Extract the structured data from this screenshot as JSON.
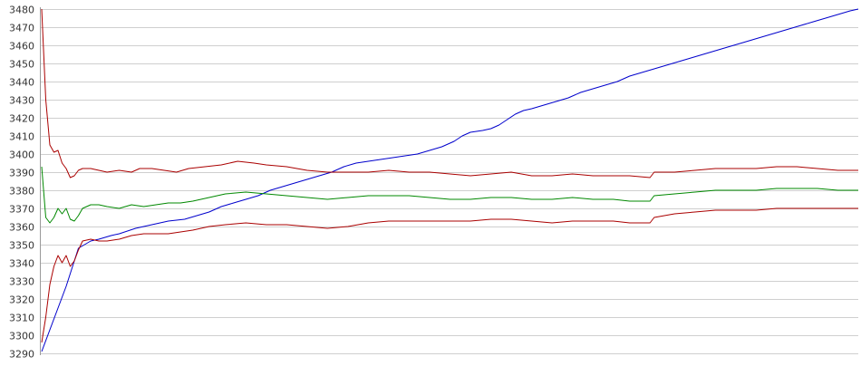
{
  "chart_data": {
    "type": "line",
    "title": "",
    "xlabel": "",
    "ylabel": "",
    "ylim": [
      3290,
      3480
    ],
    "xlim": [
      0,
      200
    ],
    "y_ticks": [
      "3290",
      "3300",
      "3310",
      "3320",
      "3330",
      "3340",
      "3350",
      "3360",
      "3370",
      "3380",
      "3390",
      "3400",
      "3410",
      "3420",
      "3430",
      "3440",
      "3450",
      "3460",
      "3470",
      "3480"
    ],
    "grid": true,
    "legend": "none",
    "series": [
      {
        "color": "#0000cc",
        "points": [
          [
            0,
            3291
          ],
          [
            4,
            3315
          ],
          [
            6,
            3327
          ],
          [
            8,
            3341
          ],
          [
            9,
            3348
          ],
          [
            12,
            3352
          ],
          [
            14,
            3353
          ],
          [
            17,
            3355
          ],
          [
            19,
            3356
          ],
          [
            23,
            3359
          ],
          [
            27,
            3361
          ],
          [
            31,
            3363
          ],
          [
            35,
            3364
          ],
          [
            38,
            3366
          ],
          [
            41,
            3368
          ],
          [
            44,
            3371
          ],
          [
            47,
            3373
          ],
          [
            50,
            3375
          ],
          [
            53,
            3377
          ],
          [
            56,
            3380
          ],
          [
            59,
            3382
          ],
          [
            62,
            3384
          ],
          [
            65,
            3386
          ],
          [
            68,
            3388
          ],
          [
            71,
            3390
          ],
          [
            74,
            3393
          ],
          [
            77,
            3395
          ],
          [
            80,
            3396
          ],
          [
            83,
            3397
          ],
          [
            86,
            3398
          ],
          [
            89,
            3399
          ],
          [
            92,
            3400
          ],
          [
            95,
            3402
          ],
          [
            98,
            3404
          ],
          [
            101,
            3407
          ],
          [
            103,
            3410
          ],
          [
            105,
            3412
          ],
          [
            108,
            3413
          ],
          [
            110,
            3414
          ],
          [
            112,
            3416
          ],
          [
            114,
            3419
          ],
          [
            116,
            3422
          ],
          [
            118,
            3424
          ],
          [
            120,
            3425
          ],
          [
            123,
            3427
          ],
          [
            126,
            3429
          ],
          [
            129,
            3431
          ],
          [
            132,
            3434
          ],
          [
            135,
            3436
          ],
          [
            138,
            3438
          ],
          [
            141,
            3440
          ],
          [
            144,
            3443
          ],
          [
            147,
            3445
          ],
          [
            150,
            3447
          ],
          [
            153,
            3449
          ],
          [
            156,
            3451
          ],
          [
            159,
            3453
          ],
          [
            162,
            3455
          ],
          [
            165,
            3457
          ],
          [
            168,
            3459
          ],
          [
            171,
            3461
          ],
          [
            174,
            3463
          ],
          [
            177,
            3465
          ],
          [
            180,
            3467
          ],
          [
            183,
            3469
          ],
          [
            186,
            3471
          ],
          [
            189,
            3473
          ],
          [
            192,
            3475
          ],
          [
            195,
            3477
          ],
          [
            198,
            3479
          ],
          [
            200,
            3480
          ]
        ]
      },
      {
        "color": "#aa0000",
        "points": [
          [
            0,
            3480
          ],
          [
            1,
            3430
          ],
          [
            2,
            3405
          ],
          [
            3,
            3401
          ],
          [
            4,
            3402
          ],
          [
            5,
            3395
          ],
          [
            6,
            3392
          ],
          [
            7,
            3387
          ],
          [
            8,
            3388
          ],
          [
            9,
            3391
          ],
          [
            10,
            3392
          ],
          [
            12,
            3392
          ],
          [
            14,
            3391
          ],
          [
            16,
            3390
          ],
          [
            19,
            3391
          ],
          [
            22,
            3390
          ],
          [
            24,
            3392
          ],
          [
            27,
            3392
          ],
          [
            30,
            3391
          ],
          [
            33,
            3390
          ],
          [
            36,
            3392
          ],
          [
            40,
            3393
          ],
          [
            44,
            3394
          ],
          [
            48,
            3396
          ],
          [
            52,
            3395
          ],
          [
            55,
            3394
          ],
          [
            60,
            3393
          ],
          [
            65,
            3391
          ],
          [
            70,
            3390
          ],
          [
            75,
            3390
          ],
          [
            80,
            3390
          ],
          [
            85,
            3391
          ],
          [
            90,
            3390
          ],
          [
            95,
            3390
          ],
          [
            100,
            3389
          ],
          [
            105,
            3388
          ],
          [
            110,
            3389
          ],
          [
            115,
            3390
          ],
          [
            120,
            3388
          ],
          [
            125,
            3388
          ],
          [
            130,
            3389
          ],
          [
            135,
            3388
          ],
          [
            140,
            3388
          ],
          [
            144,
            3388
          ],
          [
            149,
            3387
          ],
          [
            150,
            3390
          ],
          [
            155,
            3390
          ],
          [
            160,
            3391
          ],
          [
            165,
            3392
          ],
          [
            170,
            3392
          ],
          [
            175,
            3392
          ],
          [
            180,
            3393
          ],
          [
            185,
            3393
          ],
          [
            190,
            3392
          ],
          [
            195,
            3391
          ],
          [
            200,
            3391
          ]
        ]
      },
      {
        "color": "#008800",
        "points": [
          [
            0,
            3393
          ],
          [
            1,
            3365
          ],
          [
            2,
            3362
          ],
          [
            3,
            3365
          ],
          [
            4,
            3370
          ],
          [
            5,
            3367
          ],
          [
            6,
            3370
          ],
          [
            7,
            3364
          ],
          [
            8,
            3363
          ],
          [
            9,
            3366
          ],
          [
            10,
            3370
          ],
          [
            12,
            3372
          ],
          [
            14,
            3372
          ],
          [
            16,
            3371
          ],
          [
            19,
            3370
          ],
          [
            22,
            3372
          ],
          [
            25,
            3371
          ],
          [
            28,
            3372
          ],
          [
            31,
            3373
          ],
          [
            34,
            3373
          ],
          [
            37,
            3374
          ],
          [
            41,
            3376
          ],
          [
            45,
            3378
          ],
          [
            50,
            3379
          ],
          [
            55,
            3378
          ],
          [
            60,
            3377
          ],
          [
            65,
            3376
          ],
          [
            70,
            3375
          ],
          [
            75,
            3376
          ],
          [
            80,
            3377
          ],
          [
            85,
            3377
          ],
          [
            90,
            3377
          ],
          [
            95,
            3376
          ],
          [
            100,
            3375
          ],
          [
            105,
            3375
          ],
          [
            110,
            3376
          ],
          [
            115,
            3376
          ],
          [
            120,
            3375
          ],
          [
            125,
            3375
          ],
          [
            130,
            3376
          ],
          [
            135,
            3375
          ],
          [
            140,
            3375
          ],
          [
            144,
            3374
          ],
          [
            149,
            3374
          ],
          [
            150,
            3377
          ],
          [
            155,
            3378
          ],
          [
            160,
            3379
          ],
          [
            165,
            3380
          ],
          [
            170,
            3380
          ],
          [
            175,
            3380
          ],
          [
            180,
            3381
          ],
          [
            185,
            3381
          ],
          [
            190,
            3381
          ],
          [
            195,
            3380
          ],
          [
            200,
            3380
          ]
        ]
      },
      {
        "color": "#aa0000",
        "points": [
          [
            0,
            3296
          ],
          [
            1,
            3310
          ],
          [
            2,
            3328
          ],
          [
            3,
            3338
          ],
          [
            4,
            3344
          ],
          [
            5,
            3340
          ],
          [
            6,
            3344
          ],
          [
            7,
            3338
          ],
          [
            8,
            3341
          ],
          [
            9,
            3347
          ],
          [
            10,
            3352
          ],
          [
            12,
            3353
          ],
          [
            14,
            3352
          ],
          [
            16,
            3352
          ],
          [
            19,
            3353
          ],
          [
            22,
            3355
          ],
          [
            25,
            3356
          ],
          [
            28,
            3356
          ],
          [
            31,
            3356
          ],
          [
            34,
            3357
          ],
          [
            37,
            3358
          ],
          [
            41,
            3360
          ],
          [
            45,
            3361
          ],
          [
            50,
            3362
          ],
          [
            55,
            3361
          ],
          [
            60,
            3361
          ],
          [
            65,
            3360
          ],
          [
            70,
            3359
          ],
          [
            75,
            3360
          ],
          [
            80,
            3362
          ],
          [
            85,
            3363
          ],
          [
            90,
            3363
          ],
          [
            95,
            3363
          ],
          [
            100,
            3363
          ],
          [
            105,
            3363
          ],
          [
            110,
            3364
          ],
          [
            115,
            3364
          ],
          [
            120,
            3363
          ],
          [
            125,
            3362
          ],
          [
            130,
            3363
          ],
          [
            135,
            3363
          ],
          [
            140,
            3363
          ],
          [
            144,
            3362
          ],
          [
            149,
            3362
          ],
          [
            150,
            3365
          ],
          [
            155,
            3367
          ],
          [
            160,
            3368
          ],
          [
            165,
            3369
          ],
          [
            170,
            3369
          ],
          [
            175,
            3369
          ],
          [
            180,
            3370
          ],
          [
            185,
            3370
          ],
          [
            190,
            3370
          ],
          [
            195,
            3370
          ],
          [
            200,
            3370
          ]
        ]
      }
    ]
  }
}
